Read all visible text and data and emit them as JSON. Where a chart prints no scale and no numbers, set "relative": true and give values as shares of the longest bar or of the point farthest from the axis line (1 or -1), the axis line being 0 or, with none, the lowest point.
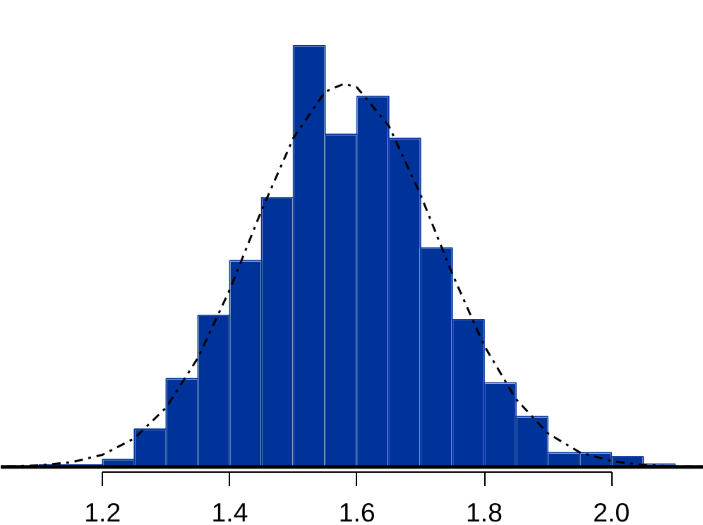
{
  "chart_data": {
    "type": "histogram",
    "relative": true,
    "bins": [
      1.1,
      1.15,
      1.2,
      1.25,
      1.3,
      1.35,
      1.4,
      1.45,
      1.5,
      1.55,
      1.6,
      1.65,
      1.7,
      1.75,
      1.8,
      1.85,
      1.9,
      1.95,
      2.0,
      2.05,
      2.1
    ],
    "values": [
      0.005,
      0.005,
      0.018,
      0.09,
      0.21,
      0.36,
      0.49,
      0.64,
      1.0,
      0.79,
      0.88,
      0.78,
      0.52,
      0.35,
      0.2,
      0.12,
      0.034,
      0.034,
      0.025,
      0.007
    ],
    "color": "#003399",
    "series": [
      {
        "type": "line",
        "color": "#000000",
        "line_style": "dashdot",
        "x": [
          1.05,
          1.1,
          1.15,
          1.2,
          1.25,
          1.3,
          1.35,
          1.4,
          1.45,
          1.5,
          1.55,
          1.58,
          1.6,
          1.65,
          1.7,
          1.75,
          1.8,
          1.85,
          1.9,
          1.95,
          2.0,
          2.05,
          2.1,
          2.14
        ],
        "values": [
          0.001,
          0.004,
          0.011,
          0.029,
          0.068,
          0.141,
          0.259,
          0.421,
          0.609,
          0.781,
          0.891,
          0.91,
          0.901,
          0.81,
          0.646,
          0.458,
          0.288,
          0.161,
          0.08,
          0.035,
          0.014,
          0.005,
          0.001,
          0.001
        ]
      }
    ],
    "xlim": [
      1.04,
      2.145
    ],
    "xticks": [
      1.2,
      1.4,
      1.6,
      1.8,
      {
        "value": 2.0,
        "label": "2.0"
      }
    ],
    "grid": false
  }
}
